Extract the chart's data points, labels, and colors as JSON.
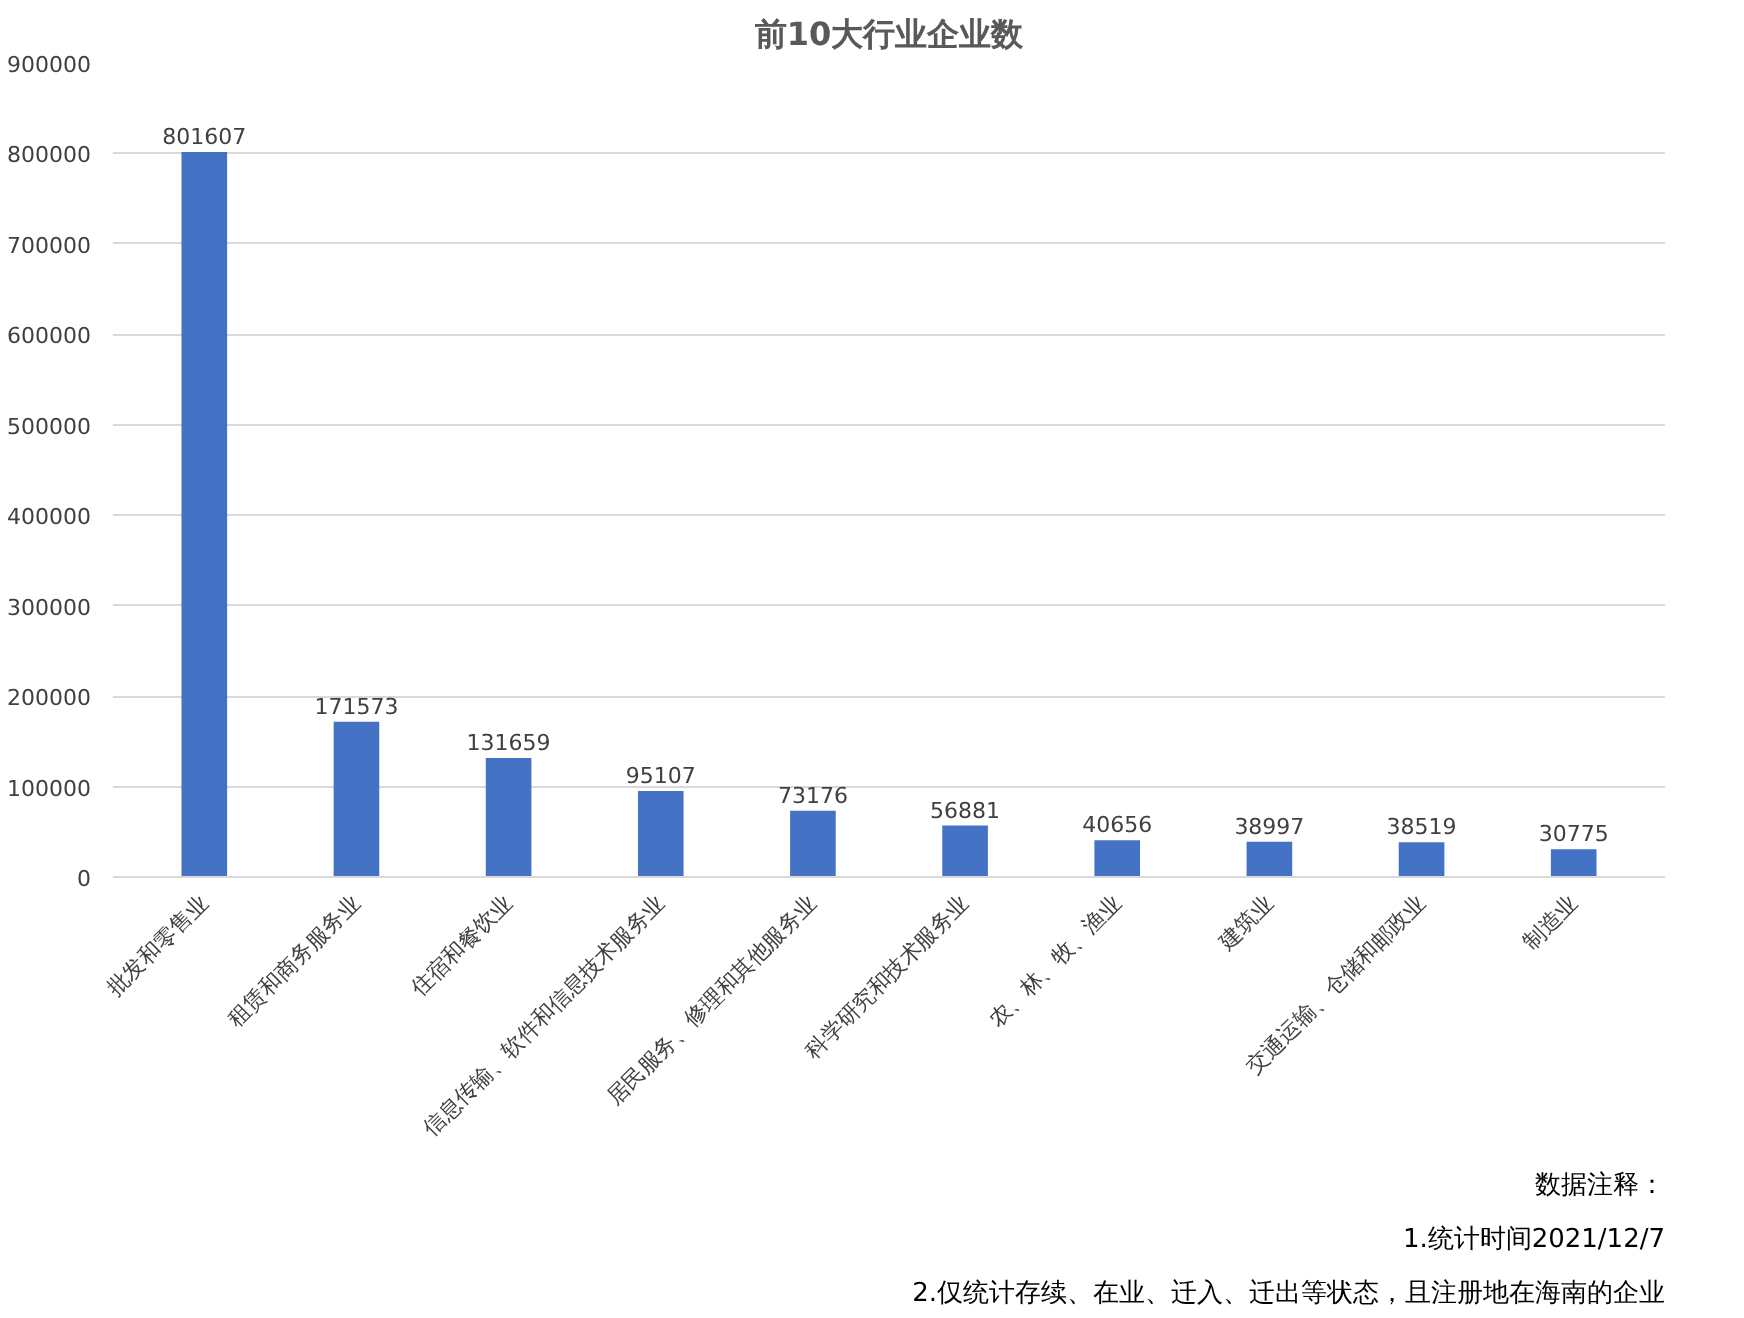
{
  "chart_data": {
    "type": "bar",
    "title": "前10大行业企业数",
    "categories": [
      "批发和零售业",
      "租赁和商务服务业",
      "住宿和餐饮业",
      "信息传输、软件和信息技术服务业",
      "居民服务、修理和其他服务业",
      "科学研究和技术服务业",
      "农、林、牧、渔业",
      "建筑业",
      "交通运输、仓储和邮政业",
      "制造业"
    ],
    "values": [
      801607,
      171573,
      131659,
      95107,
      73176,
      56881,
      40656,
      38997,
      38519,
      30775
    ],
    "color": "#4472c4",
    "ylim": [
      0,
      900000
    ],
    "yticks": [
      0,
      100000,
      200000,
      300000,
      400000,
      500000,
      600000,
      700000,
      800000,
      900000
    ],
    "grid": "y",
    "data_labels": true,
    "annotations": [
      "数据注释：",
      "1.统计时间2021/12/7",
      "2.仅统计存续、在业、迁入、迁出等状态，且注册地在海南的企业"
    ]
  }
}
